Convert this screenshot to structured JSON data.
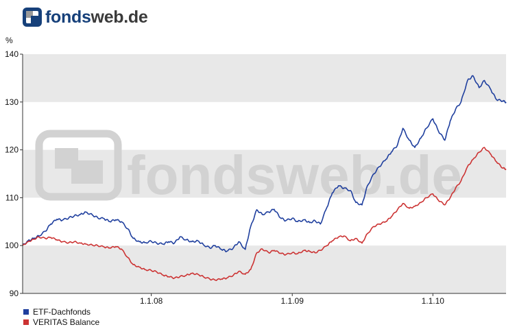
{
  "logo": {
    "part1": "fonds",
    "part2": "web.de"
  },
  "watermark": {
    "text": "fondsweb.de"
  },
  "colors": {
    "series1": "#1f3f9e",
    "series2": "#cc3333",
    "band": "#e8e8e8",
    "axis": "#333333",
    "watermark": "#d2d2d2"
  },
  "chart_data": {
    "type": "line",
    "ylabel": "%",
    "ylim": [
      90,
      140
    ],
    "yticks": [
      90,
      100,
      110,
      120,
      130,
      140
    ],
    "xlim": [
      "2007-02-01",
      "2010-07-10"
    ],
    "xticks": [
      {
        "date": "2008-01-01",
        "label": "1.1.08"
      },
      {
        "date": "2009-01-01",
        "label": "1.1.09"
      },
      {
        "date": "2010-01-01",
        "label": "1.1.10"
      }
    ],
    "grid": "alternating horizontal bands",
    "legend_position": "bottom-left",
    "series": [
      {
        "name": "ETF-Dachfonds",
        "color": "#1f3f9e",
        "points": [
          [
            "2007-02-01",
            100.0
          ],
          [
            "2007-02-15",
            101.0
          ],
          [
            "2007-03-01",
            101.5
          ],
          [
            "2007-03-15",
            102.0
          ],
          [
            "2007-04-01",
            103.0
          ],
          [
            "2007-04-15",
            104.5
          ],
          [
            "2007-05-01",
            105.5
          ],
          [
            "2007-05-15",
            105.3
          ],
          [
            "2007-06-01",
            105.8
          ],
          [
            "2007-06-15",
            106.2
          ],
          [
            "2007-07-01",
            106.5
          ],
          [
            "2007-07-15",
            107.0
          ],
          [
            "2007-08-01",
            106.4
          ],
          [
            "2007-08-15",
            105.8
          ],
          [
            "2007-09-01",
            105.6
          ],
          [
            "2007-09-15",
            105.0
          ],
          [
            "2007-10-01",
            105.4
          ],
          [
            "2007-10-15",
            105.0
          ],
          [
            "2007-11-01",
            103.5
          ],
          [
            "2007-11-15",
            101.5
          ],
          [
            "2007-12-01",
            100.8
          ],
          [
            "2007-12-15",
            100.6
          ],
          [
            "2008-01-01",
            100.9
          ],
          [
            "2008-01-15",
            100.5
          ],
          [
            "2008-02-01",
            100.3
          ],
          [
            "2008-02-15",
            100.8
          ],
          [
            "2008-03-01",
            100.5
          ],
          [
            "2008-03-15",
            101.8
          ],
          [
            "2008-04-01",
            101.2
          ],
          [
            "2008-04-15",
            100.8
          ],
          [
            "2008-05-01",
            101.0
          ],
          [
            "2008-05-15",
            100.2
          ],
          [
            "2008-06-01",
            99.5
          ],
          [
            "2008-06-15",
            100.0
          ],
          [
            "2008-07-01",
            99.2
          ],
          [
            "2008-07-15",
            98.8
          ],
          [
            "2008-08-01",
            99.5
          ],
          [
            "2008-08-15",
            100.8
          ],
          [
            "2008-09-01",
            99.2
          ],
          [
            "2008-09-15",
            104.0
          ],
          [
            "2008-10-01",
            107.5
          ],
          [
            "2008-10-15",
            106.5
          ],
          [
            "2008-11-01",
            107.0
          ],
          [
            "2008-11-15",
            107.6
          ],
          [
            "2008-12-01",
            105.8
          ],
          [
            "2008-12-15",
            105.2
          ],
          [
            "2009-01-01",
            105.7
          ],
          [
            "2009-01-15",
            105.0
          ],
          [
            "2009-02-01",
            105.4
          ],
          [
            "2009-02-15",
            104.8
          ],
          [
            "2009-03-01",
            105.2
          ],
          [
            "2009-03-15",
            104.5
          ],
          [
            "2009-04-01",
            108.0
          ],
          [
            "2009-04-15",
            111.0
          ],
          [
            "2009-05-01",
            112.5
          ],
          [
            "2009-05-15",
            112.0
          ],
          [
            "2009-06-01",
            111.5
          ],
          [
            "2009-06-15",
            109.0
          ],
          [
            "2009-07-01",
            108.5
          ],
          [
            "2009-07-15",
            112.5
          ],
          [
            "2009-08-01",
            115.0
          ],
          [
            "2009-08-15",
            116.5
          ],
          [
            "2009-09-01",
            118.0
          ],
          [
            "2009-09-15",
            119.5
          ],
          [
            "2009-10-01",
            121.0
          ],
          [
            "2009-10-15",
            124.5
          ],
          [
            "2009-11-01",
            122.0
          ],
          [
            "2009-11-15",
            120.5
          ],
          [
            "2009-12-01",
            122.5
          ],
          [
            "2009-12-15",
            124.5
          ],
          [
            "2010-01-01",
            126.5
          ],
          [
            "2010-01-15",
            124.0
          ],
          [
            "2010-02-01",
            122.0
          ],
          [
            "2010-02-15",
            126.0
          ],
          [
            "2010-03-01",
            128.5
          ],
          [
            "2010-03-15",
            130.0
          ],
          [
            "2010-04-01",
            134.5
          ],
          [
            "2010-04-15",
            135.5
          ],
          [
            "2010-05-01",
            133.0
          ],
          [
            "2010-05-15",
            134.5
          ],
          [
            "2010-06-01",
            132.5
          ],
          [
            "2010-06-15",
            130.5
          ],
          [
            "2010-07-01",
            130.2
          ],
          [
            "2010-07-10",
            130.0
          ]
        ]
      },
      {
        "name": "VERITAS Balance",
        "color": "#cc3333",
        "points": [
          [
            "2007-02-01",
            100.0
          ],
          [
            "2007-02-15",
            100.8
          ],
          [
            "2007-03-01",
            101.3
          ],
          [
            "2007-03-15",
            101.8
          ],
          [
            "2007-04-01",
            101.5
          ],
          [
            "2007-04-15",
            101.7
          ],
          [
            "2007-05-01",
            101.2
          ],
          [
            "2007-05-15",
            100.8
          ],
          [
            "2007-06-01",
            100.6
          ],
          [
            "2007-06-15",
            100.8
          ],
          [
            "2007-07-01",
            100.5
          ],
          [
            "2007-07-15",
            100.3
          ],
          [
            "2007-08-01",
            100.1
          ],
          [
            "2007-08-15",
            100.0
          ],
          [
            "2007-09-01",
            99.7
          ],
          [
            "2007-09-15",
            99.5
          ],
          [
            "2007-10-01",
            99.8
          ],
          [
            "2007-10-15",
            99.3
          ],
          [
            "2007-11-01",
            97.5
          ],
          [
            "2007-11-15",
            96.0
          ],
          [
            "2007-12-01",
            95.5
          ],
          [
            "2007-12-15",
            95.0
          ],
          [
            "2008-01-01",
            94.8
          ],
          [
            "2008-01-15",
            94.5
          ],
          [
            "2008-02-01",
            93.8
          ],
          [
            "2008-02-15",
            93.5
          ],
          [
            "2008-03-01",
            93.2
          ],
          [
            "2008-03-15",
            93.5
          ],
          [
            "2008-04-01",
            93.8
          ],
          [
            "2008-04-15",
            94.2
          ],
          [
            "2008-05-01",
            94.0
          ],
          [
            "2008-05-15",
            93.5
          ],
          [
            "2008-06-01",
            93.0
          ],
          [
            "2008-06-15",
            92.8
          ],
          [
            "2008-07-01",
            93.0
          ],
          [
            "2008-07-15",
            93.2
          ],
          [
            "2008-08-01",
            93.8
          ],
          [
            "2008-08-15",
            94.6
          ],
          [
            "2008-09-01",
            94.0
          ],
          [
            "2008-09-15",
            95.0
          ],
          [
            "2008-10-01",
            98.5
          ],
          [
            "2008-10-15",
            99.3
          ],
          [
            "2008-11-01",
            98.5
          ],
          [
            "2008-11-15",
            99.0
          ],
          [
            "2008-12-01",
            98.4
          ],
          [
            "2008-12-15",
            98.1
          ],
          [
            "2009-01-01",
            98.5
          ],
          [
            "2009-01-15",
            98.3
          ],
          [
            "2009-02-01",
            99.0
          ],
          [
            "2009-02-15",
            98.8
          ],
          [
            "2009-03-01",
            98.5
          ],
          [
            "2009-03-15",
            99.0
          ],
          [
            "2009-04-01",
            100.0
          ],
          [
            "2009-04-15",
            101.0
          ],
          [
            "2009-05-01",
            101.8
          ],
          [
            "2009-05-15",
            102.0
          ],
          [
            "2009-06-01",
            101.0
          ],
          [
            "2009-06-15",
            101.5
          ],
          [
            "2009-07-01",
            100.5
          ],
          [
            "2009-07-15",
            102.5
          ],
          [
            "2009-08-01",
            104.0
          ],
          [
            "2009-08-15",
            104.5
          ],
          [
            "2009-09-01",
            105.0
          ],
          [
            "2009-09-15",
            106.0
          ],
          [
            "2009-10-01",
            107.5
          ],
          [
            "2009-10-15",
            108.8
          ],
          [
            "2009-11-01",
            107.8
          ],
          [
            "2009-11-15",
            108.2
          ],
          [
            "2009-12-01",
            109.0
          ],
          [
            "2009-12-15",
            110.0
          ],
          [
            "2010-01-01",
            110.8
          ],
          [
            "2010-01-15",
            109.5
          ],
          [
            "2010-02-01",
            108.5
          ],
          [
            "2010-02-15",
            110.0
          ],
          [
            "2010-03-01",
            112.0
          ],
          [
            "2010-03-15",
            113.5
          ],
          [
            "2010-04-01",
            116.5
          ],
          [
            "2010-04-15",
            118.0
          ],
          [
            "2010-05-01",
            119.5
          ],
          [
            "2010-05-15",
            120.5
          ],
          [
            "2010-06-01",
            119.0
          ],
          [
            "2010-06-15",
            117.5
          ],
          [
            "2010-07-01",
            116.2
          ],
          [
            "2010-07-10",
            116.0
          ]
        ]
      }
    ]
  }
}
